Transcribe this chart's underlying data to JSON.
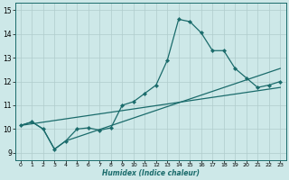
{
  "xlabel": "Humidex (Indice chaleur)",
  "bg_color": "#cde8e8",
  "grid_color": "#b0cccc",
  "line_color": "#1a6b6b",
  "xlim": [
    -0.5,
    23.5
  ],
  "ylim": [
    8.7,
    15.3
  ],
  "xticks": [
    0,
    1,
    2,
    3,
    4,
    5,
    6,
    7,
    8,
    9,
    10,
    11,
    12,
    13,
    14,
    15,
    16,
    17,
    18,
    19,
    20,
    21,
    22,
    23
  ],
  "yticks": [
    9,
    10,
    11,
    12,
    13,
    14,
    15
  ],
  "line1_x": [
    0,
    1,
    2,
    3,
    4,
    5,
    6,
    7,
    8,
    9,
    10,
    11,
    12,
    13,
    14,
    15,
    16,
    17,
    18,
    19,
    20,
    21,
    22,
    23
  ],
  "line1_y": [
    10.15,
    10.3,
    10.0,
    9.15,
    9.5,
    10.0,
    10.05,
    9.95,
    10.05,
    11.0,
    11.15,
    11.5,
    11.85,
    12.9,
    14.62,
    14.52,
    14.05,
    13.3,
    13.3,
    12.55,
    12.15,
    11.75,
    11.85,
    12.0
  ],
  "line2_x": [
    0,
    1,
    2,
    3,
    4,
    23
  ],
  "line2_y": [
    10.15,
    10.3,
    10.0,
    9.15,
    9.5,
    12.55
  ],
  "line4_x": [
    0,
    23
  ],
  "line4_y": [
    10.15,
    11.75
  ]
}
